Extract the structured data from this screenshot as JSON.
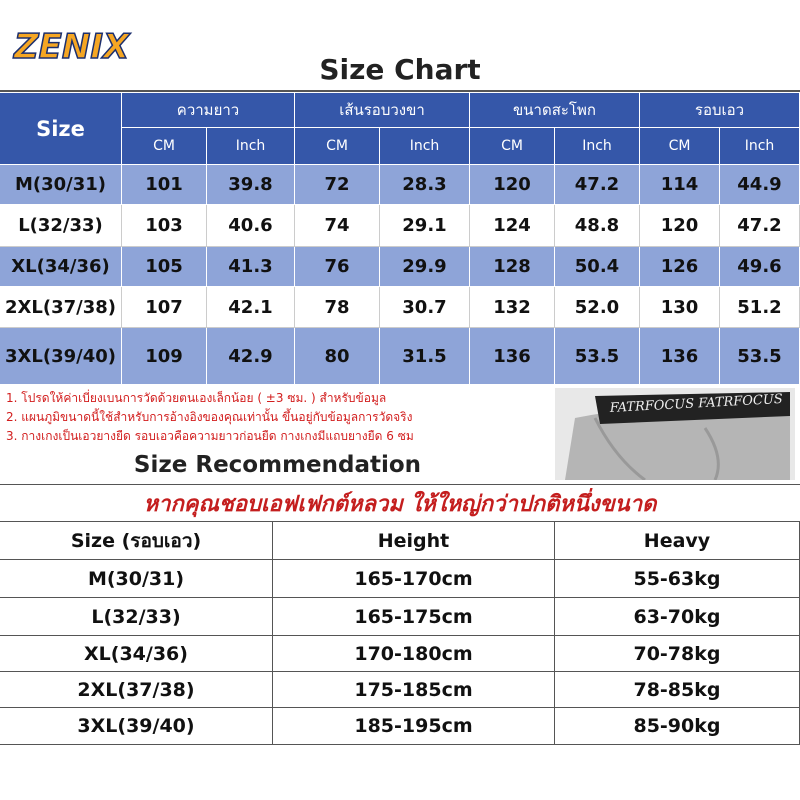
{
  "logo": "ZENIX",
  "title": "Size Chart",
  "size_table": {
    "size_header": "Size",
    "groups": [
      "ความยาว",
      "เส้นรอบวงขา",
      "ขนาดสะโพก",
      "รอบเอว"
    ],
    "units": [
      "CM",
      "Inch"
    ],
    "rows": [
      [
        "M(30/31)",
        "101",
        "39.8",
        "72",
        "28.3",
        "120",
        "47.2",
        "114",
        "44.9"
      ],
      [
        "L(32/33)",
        "103",
        "40.6",
        "74",
        "29.1",
        "124",
        "48.8",
        "120",
        "47.2"
      ],
      [
        "XL(34/36)",
        "105",
        "41.3",
        "76",
        "29.9",
        "128",
        "50.4",
        "126",
        "49.6"
      ],
      [
        "2XL(37/38)",
        "107",
        "42.1",
        "78",
        "30.7",
        "132",
        "52.0",
        "130",
        "51.2"
      ],
      [
        "3XL(39/40)",
        "109",
        "42.9",
        "80",
        "31.5",
        "136",
        "53.5",
        "136",
        "53.5"
      ]
    ]
  },
  "notes": [
    "1.  โปรดให้ค่าเบี่ยงเบนการวัดด้วยตนเองเล็กน้อย  ( ±3  ซม. )  สำหรับข้อมูล",
    "2.  แผนภูมิขนาดนี้ใช้สำหรับการอ้างอิงของคุณเท่านั้น  ขึ้นอยู่กับข้อมูลการวัดจริง",
    "3.  กางเกงเป็นเอวยางยืด  รอบเอวคือความยาวก่อนยืด  กางเกงมีแถบยางยืด  6  ซม"
  ],
  "waistband_text": "FATRFOCUS FATRFOCUS",
  "recommendation": {
    "title": "Size Recommendation",
    "note": "หากคุณชอบเอฟเฟกต์หลวม  ให้ใหญ่กว่าปกติหนึ่งขนาด",
    "headers": [
      "Size  (รอบเอว)",
      "Height",
      "Heavy"
    ],
    "rows": [
      [
        "M(30/31)",
        "165-170cm",
        "55-63kg"
      ],
      [
        "L(32/33)",
        "165-175cm",
        "63-70kg"
      ],
      [
        "XL(34/36)",
        "170-180cm",
        "70-78kg"
      ],
      [
        "2XL(37/38)",
        "175-185cm",
        "78-85kg"
      ],
      [
        "3XL(39/40)",
        "185-195cm",
        "85-90kg"
      ]
    ]
  }
}
